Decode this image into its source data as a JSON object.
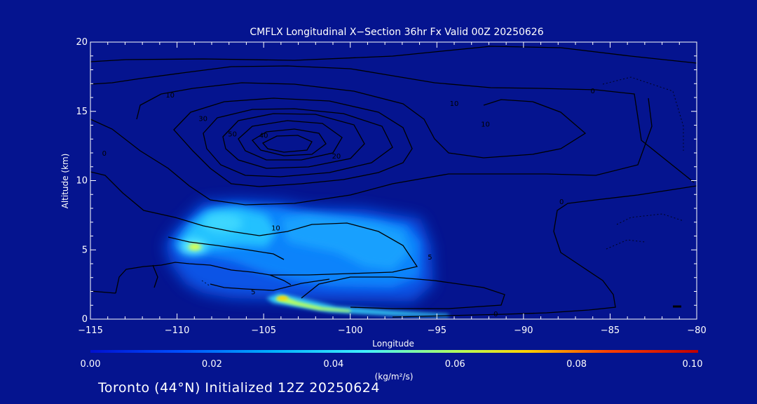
{
  "chart_data": {
    "type": "heatmap",
    "title": "CMFLX Longitudinal X−Section 36hr  Fx Valid 00Z 20250626",
    "xlabel": "Longitude",
    "ylabel": "Altitude (km)",
    "xlim": [
      -115,
      -80
    ],
    "ylim": [
      0,
      20
    ],
    "x_ticks": [
      -115,
      -110,
      -105,
      -100,
      -95,
      -90,
      -85,
      -80
    ],
    "x_tick_labels": [
      "−115",
      "−110",
      "−105",
      "−100",
      "−95",
      "−90",
      "−85",
      "−80"
    ],
    "y_ticks": [
      0,
      5,
      10,
      15,
      20
    ],
    "y_tick_labels": [
      "0",
      "5",
      "10",
      "15",
      "20"
    ],
    "colorbar": {
      "min": 0.0,
      "max": 0.1,
      "ticks": [
        0.0,
        0.02,
        0.04,
        0.06,
        0.08,
        0.1
      ],
      "tick_labels": [
        "0.00",
        "0.02",
        "0.04",
        "0.06",
        "0.08",
        "0.10"
      ],
      "units": "(kg/m²/s)",
      "colors": [
        "#0010d0",
        "#0050ff",
        "#00b0ff",
        "#40f0ff",
        "#b0ff60",
        "#ffd000",
        "#ff4000",
        "#c00000"
      ]
    },
    "shaded_field": [
      {
        "lon": -109.2,
        "alt": 5.3,
        "value": 0.045
      },
      {
        "lon": -106.5,
        "alt": 7.2,
        "value": 0.033
      },
      {
        "lon": -104.8,
        "alt": 5.6,
        "value": 0.022
      },
      {
        "lon": -102.5,
        "alt": 6.4,
        "value": 0.028
      },
      {
        "lon": -99.5,
        "alt": 5.5,
        "value": 0.016
      },
      {
        "lon": -96.5,
        "alt": 5.2,
        "value": 0.014
      },
      {
        "lon": -103.9,
        "alt": 1.5,
        "value": 0.06
      },
      {
        "lon": -101.0,
        "alt": 0.9,
        "value": 0.045
      },
      {
        "lon": -97.5,
        "alt": 0.6,
        "value": 0.03
      }
    ],
    "contour_labels": [
      {
        "lon": -110.4,
        "alt": 16.2,
        "text": "10"
      },
      {
        "lon": -108.5,
        "alt": 14.5,
        "text": "30"
      },
      {
        "lon": -106.8,
        "alt": 13.4,
        "text": "50"
      },
      {
        "lon": -105.0,
        "alt": 13.3,
        "text": "40"
      },
      {
        "lon": -114.2,
        "alt": 12.0,
        "text": "0"
      },
      {
        "lon": -100.8,
        "alt": 11.8,
        "text": "20"
      },
      {
        "lon": -94.0,
        "alt": 15.6,
        "text": "10"
      },
      {
        "lon": -92.2,
        "alt": 14.1,
        "text": "10"
      },
      {
        "lon": -86.0,
        "alt": 16.5,
        "text": "0"
      },
      {
        "lon": -104.3,
        "alt": 6.6,
        "text": "10"
      },
      {
        "lon": -87.8,
        "alt": 8.5,
        "text": "0"
      },
      {
        "lon": -105.6,
        "alt": 2.0,
        "text": "5"
      },
      {
        "lon": -95.4,
        "alt": 4.5,
        "text": "5"
      },
      {
        "lon": -91.6,
        "alt": 0.4,
        "text": "0"
      }
    ]
  },
  "footer": "Toronto (44°N) Initialized 12Z 20250624"
}
